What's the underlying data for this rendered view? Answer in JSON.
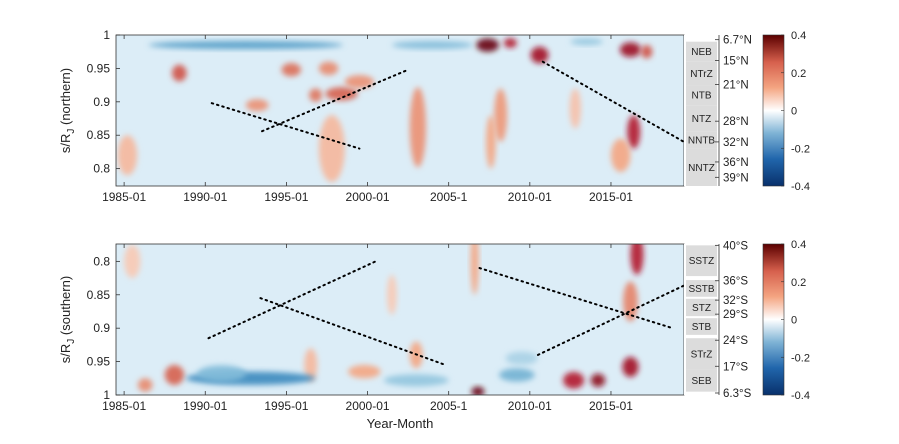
{
  "chart_data": [
    {
      "type": "heatmap",
      "panel": "northern",
      "ylabel_main": "s/R",
      "ylabel_sub": "J",
      "ylabel_suffix": " (northern)",
      "xlabel": "",
      "x_start_year": 1984.5,
      "x_end_year": 2019.5,
      "x_ticks": [
        1985,
        1990,
        1995,
        2000,
        2005,
        2010,
        2015
      ],
      "x_tick_labels": [
        "1985-01",
        "1990-01",
        "1995-01",
        "2000-01",
        "2005-1",
        "2010-01",
        "2015-01"
      ],
      "ylim": [
        1.0,
        0.774
      ],
      "y_ticks": [
        0.8,
        0.85,
        0.9,
        0.95,
        1.0
      ],
      "y_tick_labels": [
        "0.8",
        "0.85",
        "0.9",
        "0.95",
        "1"
      ],
      "bands": [
        {
          "label": "NNTZ",
          "s_from": 0.774,
          "s_to": 0.83
        },
        {
          "label": "NNTB",
          "s_from": 0.83,
          "s_to": 0.855
        },
        {
          "label": "NTZ",
          "s_from": 0.855,
          "s_to": 0.895
        },
        {
          "label": "NTB",
          "s_from": 0.895,
          "s_to": 0.925
        },
        {
          "label": "NTrZ",
          "s_from": 0.925,
          "s_to": 0.96
        },
        {
          "label": "NEB",
          "s_from": 0.96,
          "s_to": 0.99
        }
      ],
      "lat_labels": [
        {
          "label": "39°N",
          "s": 0.787
        },
        {
          "label": "36°N",
          "s": 0.81
        },
        {
          "label": "32°N",
          "s": 0.84
        },
        {
          "label": "28°N",
          "s": 0.871
        },
        {
          "label": "21°N",
          "s": 0.926
        },
        {
          "label": "15°N",
          "s": 0.962
        },
        {
          "label": "6.7°N",
          "s": 0.993
        }
      ],
      "colorbar": {
        "min": -0.4,
        "max": 0.4,
        "ticks": [
          0.4,
          0.2,
          0,
          -0.2,
          -0.4
        ],
        "tick_labels": [
          "0.4",
          "0.2",
          "0",
          "-0.2",
          "-0.4"
        ]
      },
      "dotted_trends": [
        {
          "x0": 1990.4,
          "s0": 0.898,
          "x1": 1999.5,
          "s1": 0.83
        },
        {
          "x0": 1993.5,
          "s0": 0.856,
          "x1": 2002.5,
          "s1": 0.948
        },
        {
          "x0": 2010.8,
          "s0": 0.96,
          "x1": 2019.5,
          "s1": 0.84
        }
      ],
      "features": [
        {
          "x": 2007.4,
          "s": 0.985,
          "w": 1.4,
          "h": 0.02,
          "v": 0.4
        },
        {
          "x": 2008.8,
          "s": 0.988,
          "w": 0.8,
          "h": 0.015,
          "v": 0.3
        },
        {
          "x": 2010.6,
          "s": 0.97,
          "w": 1.1,
          "h": 0.025,
          "v": 0.32
        },
        {
          "x": 2016.2,
          "s": 0.978,
          "w": 1.3,
          "h": 0.022,
          "v": 0.33
        },
        {
          "x": 2017.2,
          "s": 0.975,
          "w": 0.7,
          "h": 0.02,
          "v": 0.22
        },
        {
          "x": 2016.4,
          "s": 0.855,
          "w": 0.8,
          "h": 0.05,
          "v": 0.3
        },
        {
          "x": 2015.6,
          "s": 0.82,
          "w": 1.2,
          "h": 0.05,
          "v": 0.1
        },
        {
          "x": 2003.1,
          "s": 0.862,
          "w": 1.0,
          "h": 0.12,
          "v": 0.13
        },
        {
          "x": 1998.4,
          "s": 0.912,
          "w": 2.0,
          "h": 0.02,
          "v": 0.2
        },
        {
          "x": 1996.8,
          "s": 0.91,
          "w": 0.8,
          "h": 0.02,
          "v": 0.17
        },
        {
          "x": 1999.5,
          "s": 0.93,
          "w": 1.8,
          "h": 0.02,
          "v": 0.13
        },
        {
          "x": 1997.8,
          "s": 0.83,
          "w": 1.6,
          "h": 0.1,
          "v": 0.08
        },
        {
          "x": 1988.4,
          "s": 0.943,
          "w": 0.9,
          "h": 0.025,
          "v": 0.22
        },
        {
          "x": 1993.2,
          "s": 0.895,
          "w": 1.4,
          "h": 0.018,
          "v": 0.13
        },
        {
          "x": 1995.3,
          "s": 0.948,
          "w": 1.2,
          "h": 0.02,
          "v": 0.18
        },
        {
          "x": 1997.6,
          "s": 0.95,
          "w": 1.2,
          "h": 0.02,
          "v": 0.14
        },
        {
          "x": 2008.2,
          "s": 0.88,
          "w": 0.8,
          "h": 0.08,
          "v": 0.12
        },
        {
          "x": 2007.6,
          "s": 0.84,
          "w": 0.6,
          "h": 0.08,
          "v": 0.1
        },
        {
          "x": 1985.2,
          "s": 0.82,
          "w": 1.2,
          "h": 0.06,
          "v": 0.08
        },
        {
          "x": 2012.8,
          "s": 0.89,
          "w": 0.7,
          "h": 0.06,
          "v": 0.07
        },
        {
          "x": 1992.5,
          "s": 0.985,
          "w": 12.0,
          "h": 0.012,
          "v": -0.18
        },
        {
          "x": 2004.0,
          "s": 0.985,
          "w": 5.0,
          "h": 0.012,
          "v": -0.12
        },
        {
          "x": 2013.5,
          "s": 0.99,
          "w": 2.0,
          "h": 0.01,
          "v": -0.1
        }
      ]
    },
    {
      "type": "heatmap",
      "panel": "southern",
      "ylabel_main": "s/R",
      "ylabel_sub": "J",
      "ylabel_suffix": " (southern)",
      "xlabel": "Year-Month",
      "x_start_year": 1984.5,
      "x_end_year": 2019.5,
      "x_ticks": [
        1985,
        1990,
        1995,
        2000,
        2005,
        2010,
        2015
      ],
      "x_tick_labels": [
        "1985-01",
        "1990-01",
        "1995-01",
        "2000-01",
        "2005-1",
        "2010-01",
        "2015-01"
      ],
      "ylim": [
        0.774,
        1.0
      ],
      "y_ticks": [
        0.8,
        0.85,
        0.9,
        0.95,
        1.0
      ],
      "y_tick_labels": [
        "0.8",
        "0.85",
        "0.9",
        "0.95",
        "1"
      ],
      "bands": [
        {
          "label": "SEB",
          "s_from": 0.995,
          "s_to": 0.962
        },
        {
          "label": "STrZ",
          "s_from": 0.962,
          "s_to": 0.915
        },
        {
          "label": "STB",
          "s_from": 0.91,
          "s_to": 0.885
        },
        {
          "label": "STZ",
          "s_from": 0.882,
          "s_to": 0.856
        },
        {
          "label": "SSTB",
          "s_from": 0.853,
          "s_to": 0.828
        },
        {
          "label": "SSTZ",
          "s_from": 0.822,
          "s_to": 0.776
        }
      ],
      "lat_labels": [
        {
          "label": "6.3°S",
          "s": 0.997
        },
        {
          "label": "17°S",
          "s": 0.957
        },
        {
          "label": "24°S",
          "s": 0.918
        },
        {
          "label": "29°S",
          "s": 0.879
        },
        {
          "label": "32°S",
          "s": 0.858
        },
        {
          "label": "36°S",
          "s": 0.829
        },
        {
          "label": "40°S",
          "s": 0.776
        }
      ],
      "colorbar": {
        "min": -0.4,
        "max": 0.4,
        "ticks": [
          0.4,
          0.2,
          0,
          -0.2,
          -0.4
        ],
        "tick_labels": [
          "0.4",
          "0.2",
          "0",
          "-0.2",
          "-0.4"
        ]
      },
      "dotted_trends": [
        {
          "x0": 1990.2,
          "s0": 0.915,
          "x1": 2000.5,
          "s1": 0.8
        },
        {
          "x0": 1993.4,
          "s0": 0.855,
          "x1": 2004.8,
          "s1": 0.955
        },
        {
          "x0": 2006.9,
          "s0": 0.81,
          "x1": 2018.8,
          "s1": 0.9
        },
        {
          "x0": 2010.5,
          "s0": 0.94,
          "x1": 2019.6,
          "s1": 0.835
        }
      ],
      "features": [
        {
          "x": 2006.8,
          "s": 0.995,
          "w": 0.8,
          "h": 0.015,
          "v": 0.4
        },
        {
          "x": 2012.7,
          "s": 0.978,
          "w": 1.3,
          "h": 0.025,
          "v": 0.3
        },
        {
          "x": 2014.2,
          "s": 0.978,
          "w": 0.9,
          "h": 0.02,
          "v": 0.35
        },
        {
          "x": 2016.2,
          "s": 0.958,
          "w": 1.0,
          "h": 0.03,
          "v": 0.32
        },
        {
          "x": 2016.6,
          "s": 0.79,
          "w": 0.8,
          "h": 0.06,
          "v": 0.3
        },
        {
          "x": 2016.2,
          "s": 0.86,
          "w": 0.9,
          "h": 0.06,
          "v": 0.15
        },
        {
          "x": 1988.1,
          "s": 0.97,
          "w": 1.2,
          "h": 0.03,
          "v": 0.2
        },
        {
          "x": 1986.3,
          "s": 0.985,
          "w": 0.9,
          "h": 0.02,
          "v": 0.14
        },
        {
          "x": 2006.6,
          "s": 0.8,
          "w": 0.5,
          "h": 0.1,
          "v": 0.1
        },
        {
          "x": 2003.0,
          "s": 0.94,
          "w": 0.8,
          "h": 0.04,
          "v": 0.1
        },
        {
          "x": 1999.8,
          "s": 0.965,
          "w": 2.0,
          "h": 0.02,
          "v": 0.1
        },
        {
          "x": 1996.5,
          "s": 0.955,
          "w": 0.8,
          "h": 0.05,
          "v": 0.08
        },
        {
          "x": 1985.5,
          "s": 0.8,
          "w": 1.0,
          "h": 0.05,
          "v": 0.06
        },
        {
          "x": 2001.5,
          "s": 0.85,
          "w": 0.6,
          "h": 0.06,
          "v": 0.06
        },
        {
          "x": 1992.8,
          "s": 0.975,
          "w": 8.0,
          "h": 0.02,
          "v": -0.22
        },
        {
          "x": 1991.0,
          "s": 0.968,
          "w": 3.0,
          "h": 0.025,
          "v": -0.12
        },
        {
          "x": 2003.0,
          "s": 0.978,
          "w": 4.0,
          "h": 0.018,
          "v": -0.1
        },
        {
          "x": 2009.2,
          "s": 0.97,
          "w": 2.2,
          "h": 0.02,
          "v": -0.14
        },
        {
          "x": 2009.5,
          "s": 0.945,
          "w": 2.0,
          "h": 0.02,
          "v": -0.08
        }
      ]
    }
  ]
}
